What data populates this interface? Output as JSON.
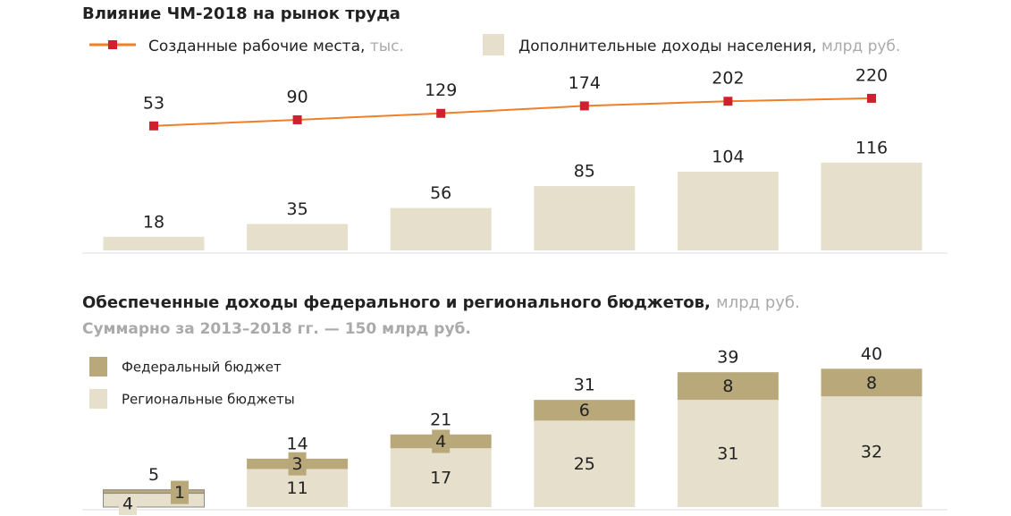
{
  "chart_data": [
    {
      "type": "bar-line",
      "title": "Влияние ЧМ-2018 на рынок труда",
      "categories": [
        null,
        null,
        null,
        null,
        null,
        null
      ],
      "series": [
        {
          "name": "Созданные рабочие места,",
          "unit": "тыс.",
          "type": "line",
          "color": "#f07f2a",
          "marker_color": "#d0202f",
          "axis": "y2",
          "values": [
            53,
            90,
            129,
            174,
            202,
            220
          ]
        },
        {
          "name": "Дополнительные доходы населения,",
          "unit": "млрд руб.",
          "type": "bar",
          "color": "#e5dfcc",
          "values": [
            18,
            35,
            56,
            85,
            104,
            116
          ]
        }
      ],
      "ylim": [
        0,
        260
      ],
      "y2lim": [
        -700,
        490
      ]
    },
    {
      "type": "stacked-bar",
      "title": "Обеспеченные доходы федерального и регионального бюджетов,",
      "title_unit": "млрд руб.",
      "subtitle": "Суммарно за 2013–2018 гг. — 150 млрд руб.",
      "categories": [
        null,
        null,
        null,
        null,
        null,
        null
      ],
      "series": [
        {
          "name": "Региональные бюджеты",
          "color": "#e5dfcc",
          "values": [
            4,
            11,
            17,
            25,
            31,
            32
          ]
        },
        {
          "name": "Федеральный бюджет",
          "color": "#b9a97a",
          "values": [
            1,
            3,
            4,
            6,
            8,
            8
          ]
        }
      ],
      "totals": [
        5,
        14,
        21,
        31,
        39,
        40
      ],
      "ylim": [
        0,
        45
      ]
    }
  ]
}
